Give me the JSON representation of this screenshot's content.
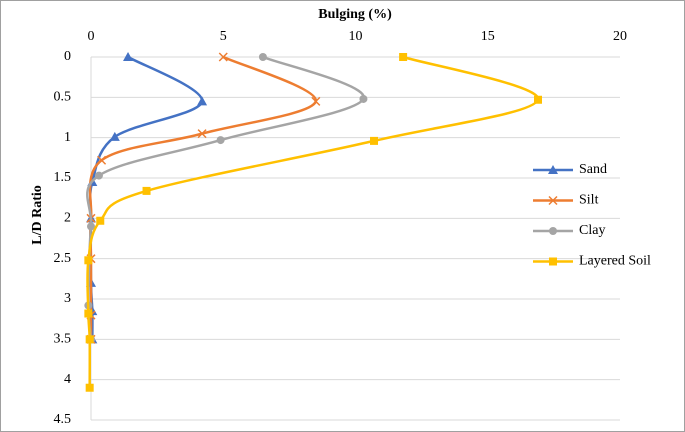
{
  "chart_data": {
    "type": "line",
    "x_label": "Bulging  (%)",
    "y_label": "L/D Ratio",
    "xlim": [
      0,
      20
    ],
    "xticks": [
      0,
      5,
      10,
      15,
      20
    ],
    "ylim": [
      0,
      4.5
    ],
    "yticks": [
      0,
      0.5,
      1,
      1.5,
      2,
      2.5,
      3,
      3.5,
      4,
      4.5
    ],
    "y_inverted": true,
    "x_axis_position": "top",
    "grid": true,
    "legend": "right",
    "smooth": true,
    "series": [
      {
        "name": "Sand",
        "color": "#4472c4",
        "marker": "triangle",
        "x": [
          1.4,
          4.2,
          0.9,
          0.05,
          0,
          0,
          0.05,
          0.05
        ],
        "values": [
          0,
          0.55,
          0.99,
          1.55,
          2.0,
          2.8,
          3.15,
          3.5
        ]
      },
      {
        "name": "Silt",
        "color": "#ed7d31",
        "marker": "x",
        "x": [
          5,
          8.5,
          4.2,
          0.4,
          0,
          0,
          0,
          0
        ],
        "values": [
          0,
          0.55,
          0.95,
          1.28,
          2.0,
          2.5,
          3.2,
          3.5
        ]
      },
      {
        "name": "Clay",
        "color": "#a5a5a5",
        "marker": "circle",
        "x": [
          6.5,
          10.3,
          4.9,
          0.3,
          0,
          -0.1,
          0
        ],
        "values": [
          0,
          0.52,
          1.03,
          1.47,
          2.1,
          3.08,
          3.5
        ]
      },
      {
        "name": "Layered Soil",
        "color": "#ffc000",
        "marker": "square",
        "x": [
          11.8,
          16.9,
          10.7,
          2.1,
          0.35,
          -0.1,
          -0.1,
          -0.05,
          -0.05
        ],
        "values": [
          0,
          0.53,
          1.04,
          1.66,
          2.03,
          2.52,
          3.18,
          3.5,
          4.1
        ]
      }
    ]
  }
}
